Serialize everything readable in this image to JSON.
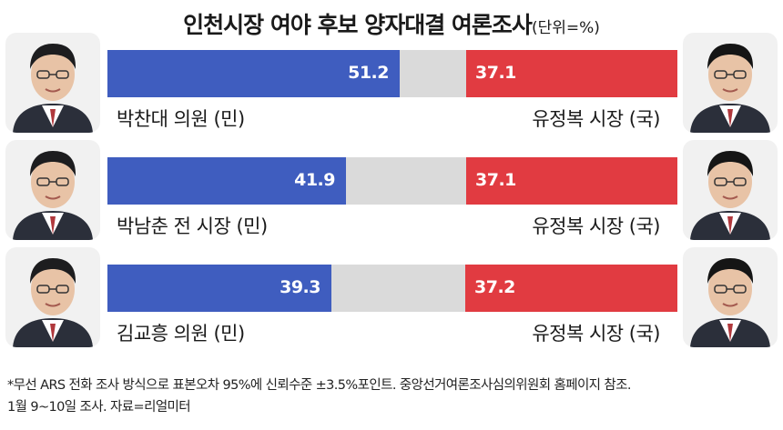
{
  "title": "인천시장 여야 후보 양자대결 여론조사",
  "unit": "(단위=%)",
  "colors": {
    "democratic": "#3f5dbf",
    "ppp": "#e13b41",
    "remainder": "#dadada"
  },
  "chart_data": {
    "type": "bar",
    "title": "인천시장 여야 후보 양자대결 여론조사",
    "unit": "%",
    "xlim": [
      0,
      100
    ],
    "categories": [
      "박찬대 의원 (민) vs 유정복 시장 (국)",
      "박남춘 전 시장 (민) vs 유정복 시장 (국)",
      "김교흥 의원 (민) vs 유정복 시장 (국)"
    ],
    "rows": [
      {
        "left_name": "박찬대 의원 (민)",
        "left_value": 51.2,
        "left_label": "51.2",
        "right_name": "유정복 시장 (국)",
        "right_value": 37.1,
        "right_label": "37.1"
      },
      {
        "left_name": "박남춘 전 시장 (민)",
        "left_value": 41.9,
        "left_label": "41.9",
        "right_name": "유정복 시장 (국)",
        "right_value": 37.1,
        "right_label": "37.1"
      },
      {
        "left_name": "김교흥 의원 (민)",
        "left_value": 39.3,
        "left_label": "39.3",
        "right_name": "유정복 시장 (국)",
        "right_value": 37.2,
        "right_label": "37.2"
      }
    ]
  },
  "footnote": {
    "line1": "*무선 ARS 전화 조사 방식으로 표본오차 95%에 신뢰수준 ±3.5%포인트. 중앙선거여론조사심의위원회 홈페이지 참조.",
    "line2": "1월 9~10일 조사. 자료=리얼미터"
  }
}
